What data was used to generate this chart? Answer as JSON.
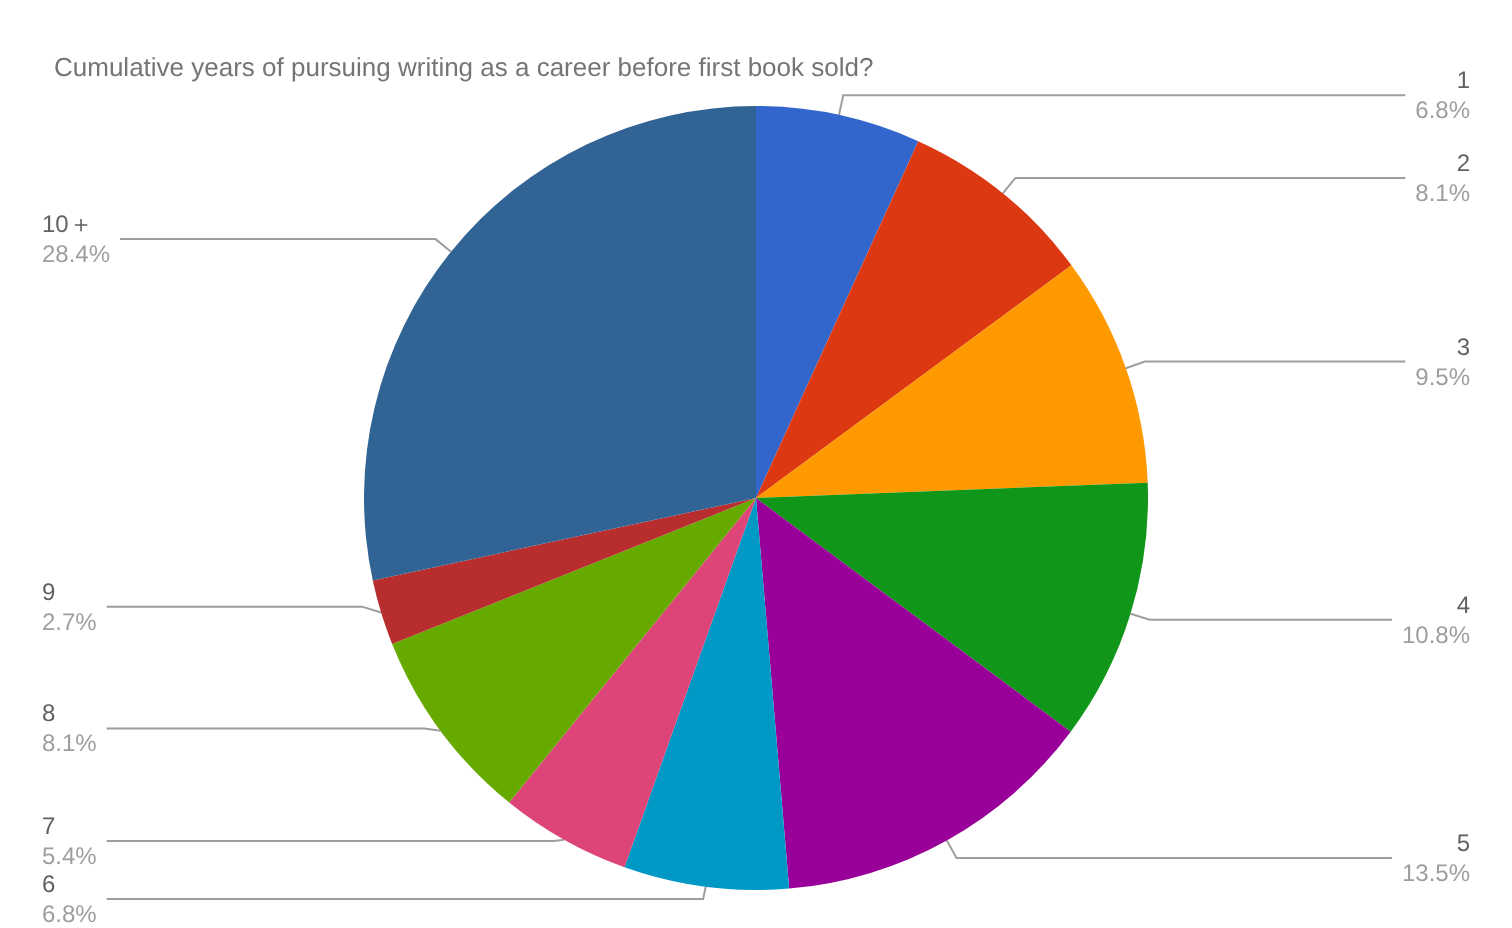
{
  "chart_data": {
    "type": "pie",
    "title": "Cumulative years of pursuing writing as a career before first book sold?",
    "categories": [
      "1",
      "2",
      "3",
      "4",
      "5",
      "6",
      "7",
      "8",
      "9",
      "10＋"
    ],
    "values": [
      6.8,
      8.1,
      9.5,
      10.8,
      13.5,
      6.8,
      5.4,
      8.1,
      2.7,
      28.4
    ],
    "value_labels": [
      "6.8%",
      "8.1%",
      "9.5%",
      "10.8%",
      "13.5%",
      "6.8%",
      "5.4%",
      "8.1%",
      "2.7%",
      "28.4%"
    ],
    "colors": [
      "#3366cc",
      "#dc3912",
      "#ff9900",
      "#109618",
      "#990099",
      "#0099c6",
      "#dd4477",
      "#66aa00",
      "#b82e2e",
      "#316395"
    ]
  }
}
